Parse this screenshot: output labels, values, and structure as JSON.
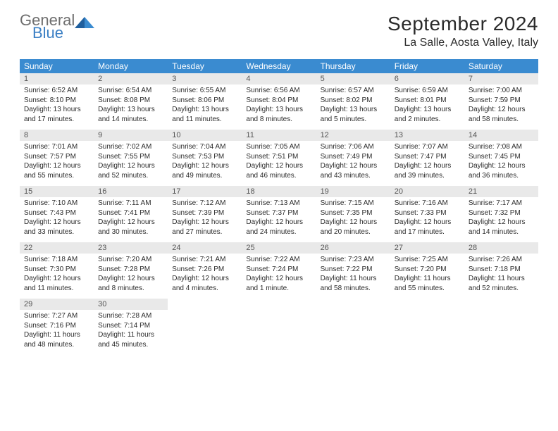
{
  "logo": {
    "general": "General",
    "blue": "Blue"
  },
  "title": "September 2024",
  "location": "La Salle, Aosta Valley, Italy",
  "colors": {
    "header_bg": "#3a8bd0",
    "header_fg": "#ffffff",
    "daynum_bg": "#e9e9e9",
    "logo_gray": "#6e6e6e",
    "logo_blue": "#3a7fc4"
  },
  "weekdays": [
    "Sunday",
    "Monday",
    "Tuesday",
    "Wednesday",
    "Thursday",
    "Friday",
    "Saturday"
  ],
  "weeks": [
    [
      {
        "n": "1",
        "sunrise": "6:52 AM",
        "sunset": "8:10 PM",
        "daylight": "13 hours and 17 minutes."
      },
      {
        "n": "2",
        "sunrise": "6:54 AM",
        "sunset": "8:08 PM",
        "daylight": "13 hours and 14 minutes."
      },
      {
        "n": "3",
        "sunrise": "6:55 AM",
        "sunset": "8:06 PM",
        "daylight": "13 hours and 11 minutes."
      },
      {
        "n": "4",
        "sunrise": "6:56 AM",
        "sunset": "8:04 PM",
        "daylight": "13 hours and 8 minutes."
      },
      {
        "n": "5",
        "sunrise": "6:57 AM",
        "sunset": "8:02 PM",
        "daylight": "13 hours and 5 minutes."
      },
      {
        "n": "6",
        "sunrise": "6:59 AM",
        "sunset": "8:01 PM",
        "daylight": "13 hours and 2 minutes."
      },
      {
        "n": "7",
        "sunrise": "7:00 AM",
        "sunset": "7:59 PM",
        "daylight": "12 hours and 58 minutes."
      }
    ],
    [
      {
        "n": "8",
        "sunrise": "7:01 AM",
        "sunset": "7:57 PM",
        "daylight": "12 hours and 55 minutes."
      },
      {
        "n": "9",
        "sunrise": "7:02 AM",
        "sunset": "7:55 PM",
        "daylight": "12 hours and 52 minutes."
      },
      {
        "n": "10",
        "sunrise": "7:04 AM",
        "sunset": "7:53 PM",
        "daylight": "12 hours and 49 minutes."
      },
      {
        "n": "11",
        "sunrise": "7:05 AM",
        "sunset": "7:51 PM",
        "daylight": "12 hours and 46 minutes."
      },
      {
        "n": "12",
        "sunrise": "7:06 AM",
        "sunset": "7:49 PM",
        "daylight": "12 hours and 43 minutes."
      },
      {
        "n": "13",
        "sunrise": "7:07 AM",
        "sunset": "7:47 PM",
        "daylight": "12 hours and 39 minutes."
      },
      {
        "n": "14",
        "sunrise": "7:08 AM",
        "sunset": "7:45 PM",
        "daylight": "12 hours and 36 minutes."
      }
    ],
    [
      {
        "n": "15",
        "sunrise": "7:10 AM",
        "sunset": "7:43 PM",
        "daylight": "12 hours and 33 minutes."
      },
      {
        "n": "16",
        "sunrise": "7:11 AM",
        "sunset": "7:41 PM",
        "daylight": "12 hours and 30 minutes."
      },
      {
        "n": "17",
        "sunrise": "7:12 AM",
        "sunset": "7:39 PM",
        "daylight": "12 hours and 27 minutes."
      },
      {
        "n": "18",
        "sunrise": "7:13 AM",
        "sunset": "7:37 PM",
        "daylight": "12 hours and 24 minutes."
      },
      {
        "n": "19",
        "sunrise": "7:15 AM",
        "sunset": "7:35 PM",
        "daylight": "12 hours and 20 minutes."
      },
      {
        "n": "20",
        "sunrise": "7:16 AM",
        "sunset": "7:33 PM",
        "daylight": "12 hours and 17 minutes."
      },
      {
        "n": "21",
        "sunrise": "7:17 AM",
        "sunset": "7:32 PM",
        "daylight": "12 hours and 14 minutes."
      }
    ],
    [
      {
        "n": "22",
        "sunrise": "7:18 AM",
        "sunset": "7:30 PM",
        "daylight": "12 hours and 11 minutes."
      },
      {
        "n": "23",
        "sunrise": "7:20 AM",
        "sunset": "7:28 PM",
        "daylight": "12 hours and 8 minutes."
      },
      {
        "n": "24",
        "sunrise": "7:21 AM",
        "sunset": "7:26 PM",
        "daylight": "12 hours and 4 minutes."
      },
      {
        "n": "25",
        "sunrise": "7:22 AM",
        "sunset": "7:24 PM",
        "daylight": "12 hours and 1 minute."
      },
      {
        "n": "26",
        "sunrise": "7:23 AM",
        "sunset": "7:22 PM",
        "daylight": "11 hours and 58 minutes."
      },
      {
        "n": "27",
        "sunrise": "7:25 AM",
        "sunset": "7:20 PM",
        "daylight": "11 hours and 55 minutes."
      },
      {
        "n": "28",
        "sunrise": "7:26 AM",
        "sunset": "7:18 PM",
        "daylight": "11 hours and 52 minutes."
      }
    ],
    [
      {
        "n": "29",
        "sunrise": "7:27 AM",
        "sunset": "7:16 PM",
        "daylight": "11 hours and 48 minutes."
      },
      {
        "n": "30",
        "sunrise": "7:28 AM",
        "sunset": "7:14 PM",
        "daylight": "11 hours and 45 minutes."
      },
      null,
      null,
      null,
      null,
      null
    ]
  ],
  "labels": {
    "sunrise": "Sunrise:",
    "sunset": "Sunset:",
    "daylight": "Daylight:"
  }
}
